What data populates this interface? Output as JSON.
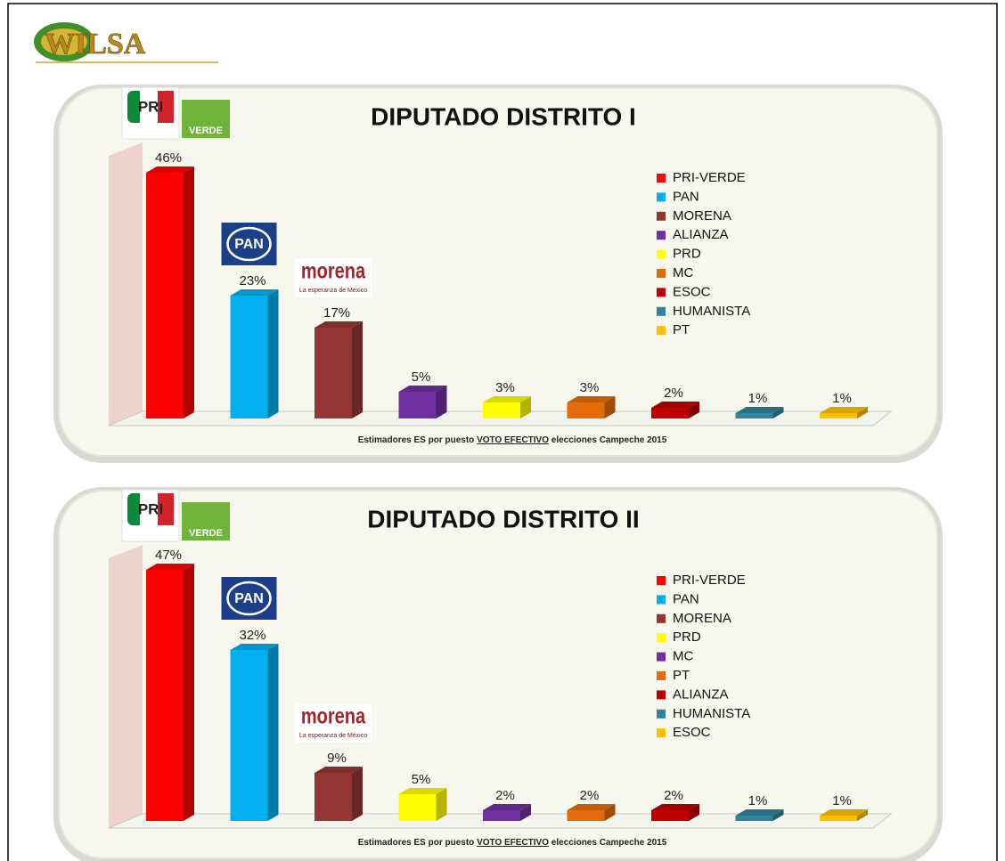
{
  "brand": "WILSA",
  "chart_data": [
    {
      "type": "bar",
      "title": "DIPUTADO DISTRITO I",
      "categories": [
        "PRI-VERDE",
        "PAN",
        "MORENA",
        "ALIANZA",
        "PRD",
        "MC",
        "ESOC",
        "HUMANISTA",
        "PT"
      ],
      "values": [
        46,
        23,
        17,
        5,
        3,
        3,
        2,
        1,
        1
      ],
      "value_labels": [
        "46%",
        "23%",
        "17%",
        "5%",
        "3%",
        "3%",
        "2%",
        "1%",
        "1%"
      ],
      "colors": [
        "#ff0000",
        "#00b0f0",
        "#943634",
        "#7030a0",
        "#ffff00",
        "#e36c09",
        "#c00000",
        "#31849b",
        "#ffc000"
      ],
      "logos": {
        "pri": "PRI",
        "verde": "VERDE",
        "pan": "PAN",
        "morena": "morena",
        "morena_tagline": "La esperanza de México"
      },
      "footnote": [
        "Estimadores  ES por puesto",
        "VOTO EFECTIVO",
        "elecciones Campeche 2015"
      ]
    },
    {
      "type": "bar",
      "title": "DIPUTADO DISTRITO II",
      "categories": [
        "PRI-VERDE",
        "PAN",
        "MORENA",
        "PRD",
        "MC",
        "PT",
        "ALIANZA",
        "HUMANISTA",
        "ESOC"
      ],
      "values": [
        47,
        32,
        9,
        5,
        2,
        2,
        2,
        1,
        1
      ],
      "value_labels": [
        "47%",
        "32%",
        "9%",
        "5%",
        "2%",
        "2%",
        "2%",
        "1%",
        "1%"
      ],
      "colors": [
        "#ff0000",
        "#00b0f0",
        "#943634",
        "#ffff00",
        "#7030a0",
        "#e36c09",
        "#c00000",
        "#31849b",
        "#ffc000"
      ],
      "logos": {
        "pri": "PRI",
        "verde": "VERDE",
        "pan": "PAN",
        "morena": "morena",
        "morena_tagline": "La esperanza de México"
      },
      "footnote": [
        "Estimadores  ES por puesto",
        "VOTO EFECTIVO",
        "elecciones Campeche 2015"
      ]
    }
  ]
}
